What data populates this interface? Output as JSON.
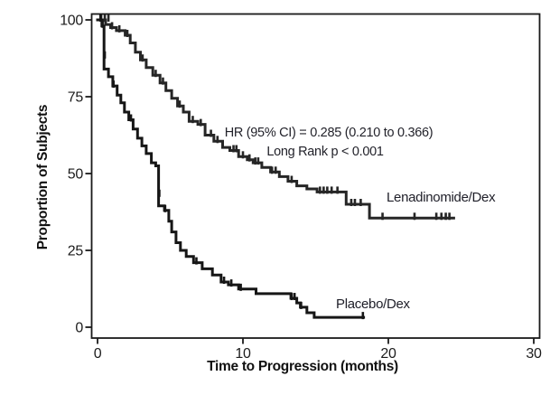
{
  "chart_data": {
    "type": "line",
    "subtype": "kaplan-meier-step",
    "title": "",
    "xlabel": "Time to Progression (months)",
    "ylabel": "Proportion of Subjects",
    "xlim": [
      0,
      30
    ],
    "ylim": [
      0,
      100
    ],
    "xticks": [
      0,
      10,
      20,
      30
    ],
    "yticks": [
      0,
      25,
      50,
      75,
      100
    ],
    "grid": false,
    "legend_position": "inline-labels",
    "annotation": {
      "line1": "HR (95% CI) = 0.285 (0.210 to 0.366)",
      "line2": "Long Rank p < 0.001"
    },
    "series": [
      {
        "name": "Lenadinomide/Dex",
        "color": "#262626",
        "points": [
          [
            0,
            100
          ],
          [
            0.55,
            98.5
          ],
          [
            0.9,
            97.5
          ],
          [
            1.3,
            96.5
          ],
          [
            1.9,
            95
          ],
          [
            2.25,
            92.5
          ],
          [
            2.6,
            89.5
          ],
          [
            2.95,
            87
          ],
          [
            3.35,
            84.5
          ],
          [
            3.8,
            82
          ],
          [
            4.3,
            79.5
          ],
          [
            4.7,
            77
          ],
          [
            5.1,
            74.5
          ],
          [
            5.5,
            72
          ],
          [
            5.9,
            70
          ],
          [
            6.3,
            67
          ],
          [
            6.9,
            66
          ],
          [
            7.4,
            62.5
          ],
          [
            8.0,
            60.5
          ],
          [
            8.6,
            58.5
          ],
          [
            9.1,
            57.5
          ],
          [
            9.7,
            55.5
          ],
          [
            10.3,
            54.5
          ],
          [
            10.7,
            53.5
          ],
          [
            11.3,
            52
          ],
          [
            11.9,
            50.5
          ],
          [
            12.5,
            49
          ],
          [
            13.1,
            47.5
          ],
          [
            13.7,
            46
          ],
          [
            14.4,
            45
          ],
          [
            15.1,
            44
          ],
          [
            17.1,
            40
          ],
          [
            18.7,
            35.5
          ],
          [
            24.5,
            35.5
          ]
        ],
        "censors": [
          [
            0.25,
            100
          ],
          [
            0.5,
            100
          ],
          [
            0.75,
            100
          ],
          [
            1.0,
            97.5
          ],
          [
            1.5,
            96.5
          ],
          [
            2.05,
            95
          ],
          [
            3.1,
            87
          ],
          [
            4.0,
            82
          ],
          [
            4.5,
            79.5
          ],
          [
            5.65,
            72
          ],
          [
            6.55,
            67
          ],
          [
            7.1,
            66
          ],
          [
            7.8,
            62.5
          ],
          [
            8.25,
            60.5
          ],
          [
            9.35,
            57.5
          ],
          [
            9.55,
            57.5
          ],
          [
            10.0,
            55.5
          ],
          [
            10.45,
            54.5
          ],
          [
            10.85,
            53.5
          ],
          [
            11.05,
            53.5
          ],
          [
            12.0,
            50.5
          ],
          [
            12.25,
            50.5
          ],
          [
            13.35,
            47.5
          ],
          [
            15.3,
            44
          ],
          [
            15.55,
            44
          ],
          [
            15.8,
            44
          ],
          [
            16.1,
            44
          ],
          [
            16.5,
            44
          ],
          [
            17.45,
            40
          ],
          [
            17.7,
            40
          ],
          [
            18.1,
            40
          ],
          [
            19.6,
            35.5
          ],
          [
            21.8,
            35.5
          ],
          [
            23.3,
            35.5
          ],
          [
            23.65,
            35.5
          ],
          [
            23.95,
            35.5
          ],
          [
            24.2,
            35.5
          ]
        ]
      },
      {
        "name": "Placebo/Dex",
        "color": "#161616",
        "points": [
          [
            0,
            100
          ],
          [
            0.3,
            98
          ],
          [
            0.45,
            84
          ],
          [
            0.75,
            81.5
          ],
          [
            1.05,
            78.5
          ],
          [
            1.35,
            75.5
          ],
          [
            1.6,
            73
          ],
          [
            1.85,
            70
          ],
          [
            2.15,
            67.5
          ],
          [
            2.45,
            64.5
          ],
          [
            2.75,
            61.5
          ],
          [
            3.05,
            59
          ],
          [
            3.35,
            56.5
          ],
          [
            3.7,
            53.5
          ],
          [
            4.0,
            52.5
          ],
          [
            4.2,
            39.5
          ],
          [
            4.6,
            38
          ],
          [
            4.9,
            34.5
          ],
          [
            5.1,
            31
          ],
          [
            5.4,
            27.5
          ],
          [
            5.7,
            25
          ],
          [
            6.1,
            23
          ],
          [
            6.6,
            21
          ],
          [
            7.2,
            19
          ],
          [
            7.9,
            17
          ],
          [
            8.5,
            14.7
          ],
          [
            9.0,
            13.8
          ],
          [
            9.7,
            12.4
          ],
          [
            10.9,
            10.9
          ],
          [
            13.3,
            9.4
          ],
          [
            13.7,
            7.9
          ],
          [
            13.95,
            6.5
          ],
          [
            14.4,
            4.7
          ],
          [
            14.9,
            3.2
          ],
          [
            18.3,
            3.2
          ]
        ],
        "censors": [
          [
            0.2,
            100
          ],
          [
            0.35,
            98
          ],
          [
            0.5,
            88
          ],
          [
            1.1,
            78.5
          ],
          [
            2.3,
            67.5
          ],
          [
            4.25,
            43
          ],
          [
            4.65,
            38
          ],
          [
            6.8,
            21
          ],
          [
            8.7,
            14.7
          ],
          [
            9.2,
            13.8
          ],
          [
            9.85,
            12.4
          ],
          [
            13.35,
            9.4
          ],
          [
            13.55,
            9.4
          ],
          [
            14.0,
            6.5
          ],
          [
            18.25,
            3.2
          ]
        ]
      }
    ]
  },
  "labels": {
    "series1_label": "Lenadinomide/Dex",
    "series2_label": "Placebo/Dex"
  },
  "colors": {
    "frame": "#1a1a1a",
    "text": "#1c1c1c",
    "background": "#ffffff"
  }
}
